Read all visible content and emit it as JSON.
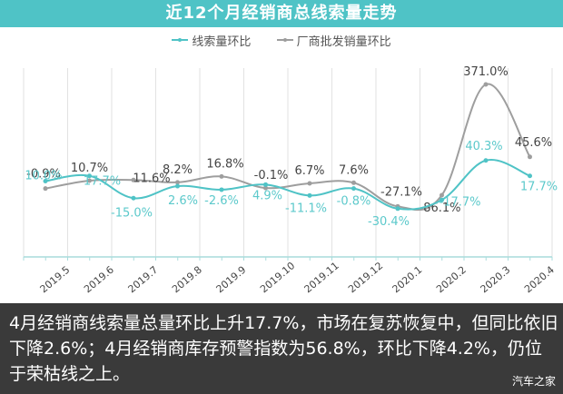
{
  "header": {
    "title": "近12个月经销商总线索量走势"
  },
  "legend": [
    {
      "label": "线索量环比",
      "color": "#4fc3c6"
    },
    {
      "label": "厂商批发销量环比",
      "color": "#9e9e9e"
    }
  ],
  "chart_data": {
    "type": "line",
    "title": "近12个月经销商总线索量走势",
    "categories": [
      "2019.5",
      "2019.6",
      "2019.7",
      "2019.8",
      "2019.9",
      "2019.10",
      "2019.11",
      "2019.12",
      "2020.1",
      "2020.2",
      "2020.3",
      "2020.4"
    ],
    "series": [
      {
        "name": "线索量环比",
        "color": "#4fc3c6",
        "values": [
          10.0,
          17.7,
          -15.0,
          2.6,
          -2.6,
          4.9,
          -11.1,
          -0.8,
          -30.4,
          -17.7,
          40.3,
          17.7
        ],
        "labels": [
          "10.0%",
          "17.7%",
          "-15.0%",
          "2.6%",
          "-2.6%",
          "4.9%",
          "-11.1%",
          "-0.8%",
          "-30.4%",
          "-17.7%",
          "40.3%",
          "17.7%"
        ]
      },
      {
        "name": "厂商批发销量环比",
        "color": "#9e9e9e",
        "values": [
          -0.9,
          10.7,
          11.6,
          8.2,
          16.8,
          -0.1,
          6.7,
          7.6,
          -27.1,
          -86.1,
          371.0,
          45.6
        ],
        "labels": [
          "-0.9%",
          "10.7%",
          "11.6%",
          "8.2%",
          "16.8%",
          "-0.1%",
          "6.7%",
          "7.6%",
          "-27.1%",
          "-86.1%",
          "371.0%",
          "45.6%"
        ]
      }
    ],
    "xlabel": "",
    "ylabel": "",
    "grid": "vertical",
    "legend_position": "top"
  },
  "caption": {
    "text": "4月经销商线索量总量环比上升17.7%，市场在复苏恢复中，但同比依旧下降2.6%；4月经销商库存预警指数为56.8%，环比下降4.2%，仍位于荣枯线之上。",
    "watermark": "汽车之家"
  }
}
